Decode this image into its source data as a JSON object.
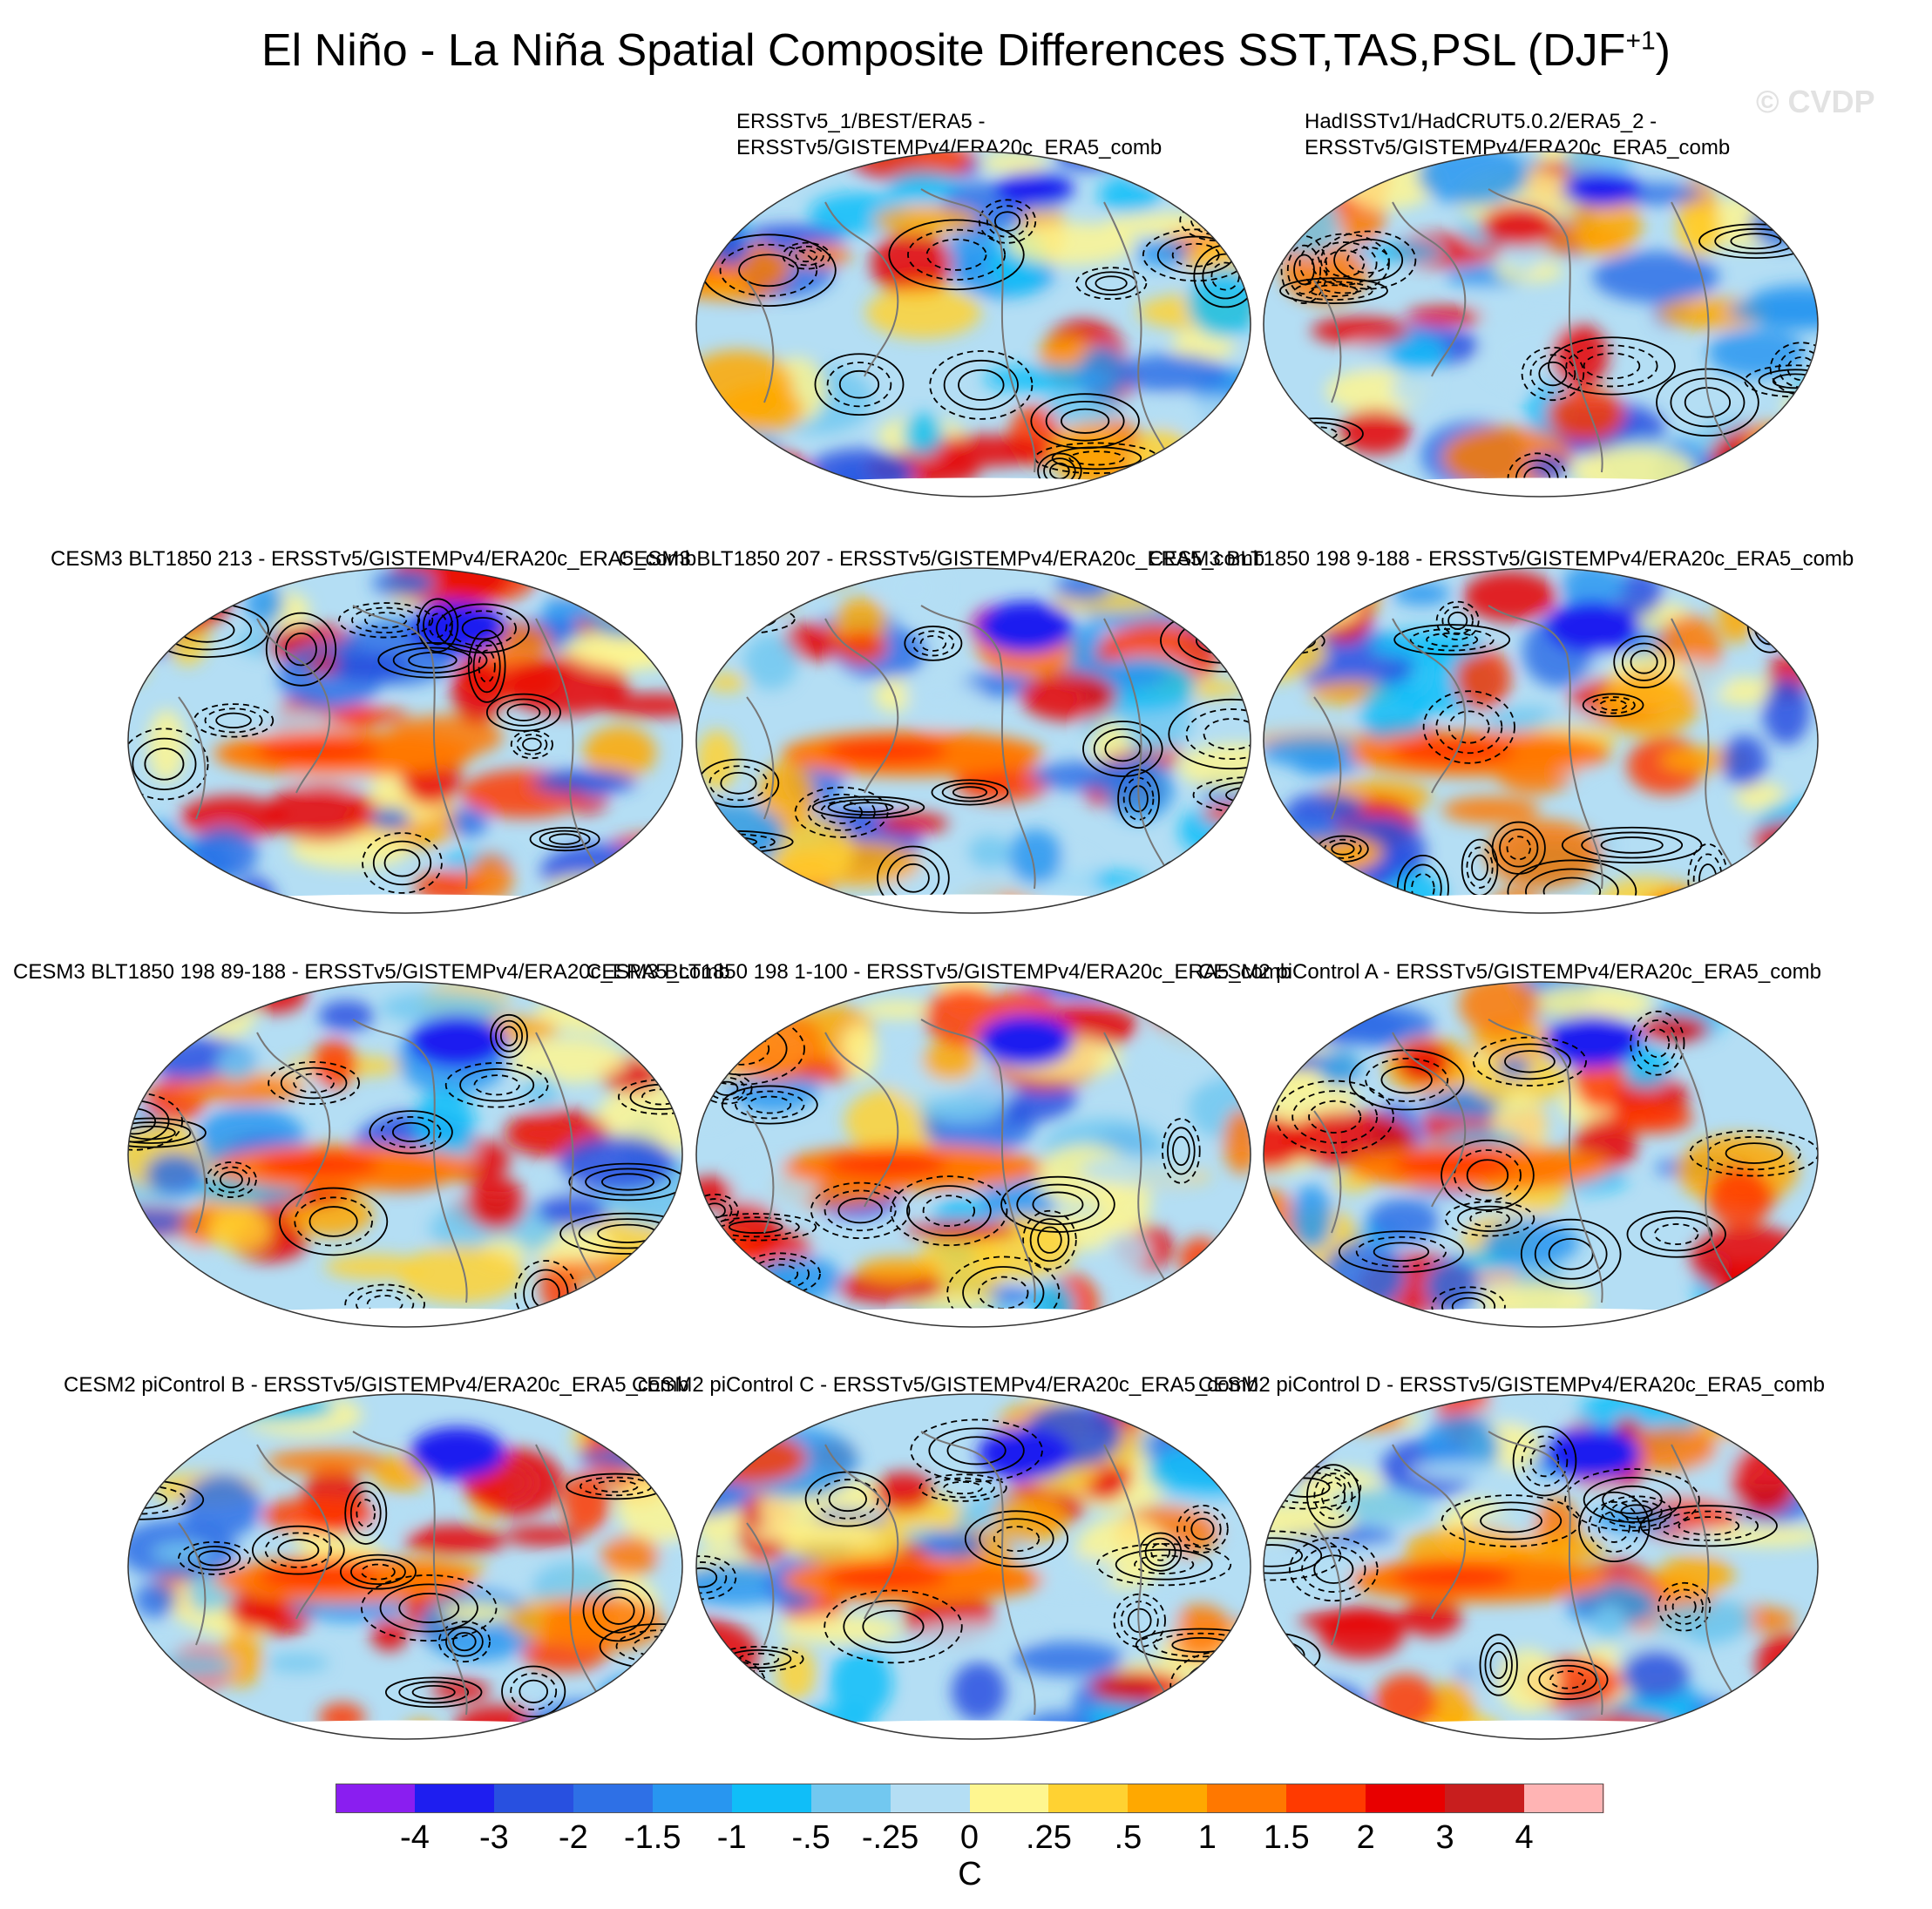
{
  "title": {
    "main": "El Niño - La Niña Spatial Composite Differences SST,TAS,PSL (DJF",
    "sup": "+1",
    "close": ")"
  },
  "watermark": "© CVDP",
  "panels": [
    {
      "title": "ERSSTv5_1/BEST/ERA5 -\nERSSTv5/GISTEMPv4/ERA20c_ERA5_comb"
    },
    {
      "title": "HadISSTv1/HadCRUT5.0.2/ERA5_2 -\nERSSTv5/GISTEMPv4/ERA20c_ERA5_comb"
    },
    {
      "title": "CESM3 BLT1850 213 - ERSSTv5/GISTEMPv4/ERA20c_ERA5_comb"
    },
    {
      "title": "CESM3 BLT1850 207 - ERSSTv5/GISTEMPv4/ERA20c_ERA5_comb"
    },
    {
      "title": "CESM3 BLT1850 198 9-188 - ERSSTv5/GISTEMPv4/ERA20c_ERA5_comb"
    },
    {
      "title": "CESM3 BLT1850 198 89-188 - ERSSTv5/GISTEMPv4/ERA20c_ERA5_comb"
    },
    {
      "title": "CESM3 BLT1850 198 1-100 - ERSSTv5/GISTEMPv4/ERA20c_ERA5_comb"
    },
    {
      "title": "CESM2 piControl A - ERSSTv5/GISTEMPv4/ERA20c_ERA5_comb"
    },
    {
      "title": "CESM2 piControl B - ERSSTv5/GISTEMPv4/ERA20c_ERA5_comb"
    },
    {
      "title": "CESM2 piControl C - ERSSTv5/GISTEMPv4/ERA20c_ERA5_comb"
    },
    {
      "title": "CESM2 piControl D - ERSSTv5/GISTEMPv4/ERA20c_ERA5_comb"
    }
  ],
  "colorbar": {
    "units": "C",
    "labels": [
      "-4",
      "-3",
      "-2",
      "-1.5",
      "-1",
      "-.5",
      "-.25",
      "0",
      ".25",
      ".5",
      "1",
      "1.5",
      "2",
      "3",
      "4"
    ],
    "colors": [
      "#8a1ef0",
      "#1e1ef0",
      "#2850e0",
      "#2e70e6",
      "#2896f0",
      "#10bef8",
      "#72c8f0",
      "#b4def4",
      "#fef690",
      "#ffd232",
      "#ffa800",
      "#ff7800",
      "#ff3a00",
      "#e80000",
      "#c81e1e",
      "#ffb4b4"
    ]
  },
  "map_layers": {
    "ocean_and_land_shading": "SST/TAS anomaly",
    "contours": "PSL anomaly",
    "coastlines": "gray"
  }
}
